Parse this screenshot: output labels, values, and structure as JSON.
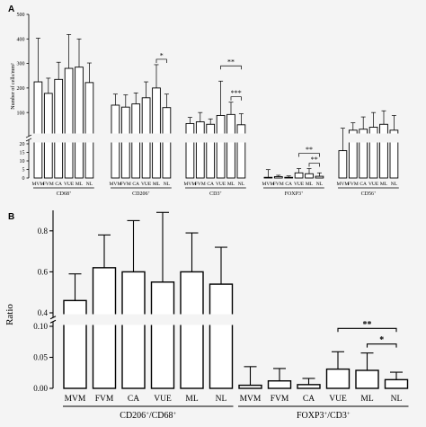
{
  "figure": {
    "background": "#f4f4f4",
    "bar_fill": "#ffffff",
    "stroke": "#000000"
  },
  "chart_data": [
    {
      "panel": "A",
      "type": "bar",
      "ylabel": "Number of cells/mm²",
      "scale": "broken y-axis",
      "lower_ylim": [
        0,
        20
      ],
      "lower_ticks": [
        0,
        5,
        10,
        15,
        20
      ],
      "upper_ylim": [
        20,
        500
      ],
      "upper_ticks": [
        100,
        200,
        300,
        400,
        500
      ],
      "categories": [
        "MVM",
        "FVM",
        "CA",
        "VUE",
        "ML",
        "NL"
      ],
      "groups": [
        {
          "name": "CD68",
          "name_sup": "+",
          "values": [
            225,
            178,
            235,
            280,
            285,
            222
          ],
          "errors": [
            178,
            62,
            70,
            138,
            115,
            80
          ]
        },
        {
          "name": "CD206",
          "name_sup": "+",
          "values": [
            130,
            122,
            135,
            160,
            200,
            120
          ],
          "errors": [
            45,
            50,
            45,
            65,
            95,
            55
          ]
        },
        {
          "name": "CD3",
          "name_sup": "+",
          "values": [
            55,
            62,
            52,
            88,
            92,
            50
          ],
          "errors": [
            25,
            38,
            22,
            140,
            50,
            45
          ]
        },
        {
          "name": "FOXP3",
          "name_sup": "+",
          "values": [
            0.4,
            0.8,
            0.4,
            3,
            2.5,
            1
          ],
          "errors": [
            4.5,
            0.8,
            0.8,
            2.5,
            3,
            2
          ]
        },
        {
          "name": "CD56",
          "name_sup": "+",
          "values": [
            16,
            28,
            32,
            40,
            52,
            28
          ],
          "errors": [
            20,
            30,
            50,
            60,
            55,
            60
          ]
        }
      ],
      "significance": [
        {
          "group": "CD206",
          "from": "ML",
          "to": "NL",
          "label": "*"
        },
        {
          "group": "CD3",
          "from": "VUE",
          "to": "NL",
          "label": "**"
        },
        {
          "group": "CD3",
          "from": "ML",
          "to": "NL",
          "label": "***"
        },
        {
          "group": "FOXP3",
          "from": "VUE",
          "to": "NL",
          "label": "**"
        },
        {
          "group": "FOXP3",
          "from": "ML",
          "to": "NL",
          "label": "**"
        }
      ]
    },
    {
      "panel": "B",
      "type": "bar",
      "ylabel": "Ratio",
      "scale": "broken y-axis",
      "lower_ylim": [
        0,
        0.1
      ],
      "lower_ticks": [
        "0.00",
        "0.05",
        "0.10"
      ],
      "upper_ylim": [
        0.4,
        0.9
      ],
      "upper_ticks": [
        "0.4",
        "0.6",
        "0.8"
      ],
      "categories": [
        "MVM",
        "FVM",
        "CA",
        "VUE",
        "ML",
        "NL"
      ],
      "groups": [
        {
          "name": "CD206",
          "name_sup": "+",
          "name_sep": "/",
          "name2": "CD68",
          "name2_sup": "+",
          "values": [
            0.46,
            0.62,
            0.6,
            0.55,
            0.6,
            0.54
          ],
          "errors": [
            0.13,
            0.16,
            0.25,
            0.34,
            0.19,
            0.18
          ]
        },
        {
          "name": "FOXP3",
          "name_sup": "+",
          "name_sep": "/",
          "name2": "CD3",
          "name2_sup": "+",
          "values": [
            0.005,
            0.012,
            0.006,
            0.031,
            0.029,
            0.014
          ],
          "errors": [
            0.03,
            0.02,
            0.01,
            0.028,
            0.028,
            0.012
          ]
        }
      ],
      "significance": [
        {
          "group": "FOXP3/CD3",
          "from": "VUE",
          "to": "NL",
          "label": "**"
        },
        {
          "group": "FOXP3/CD3",
          "from": "ML",
          "to": "NL",
          "label": "*"
        }
      ]
    }
  ]
}
